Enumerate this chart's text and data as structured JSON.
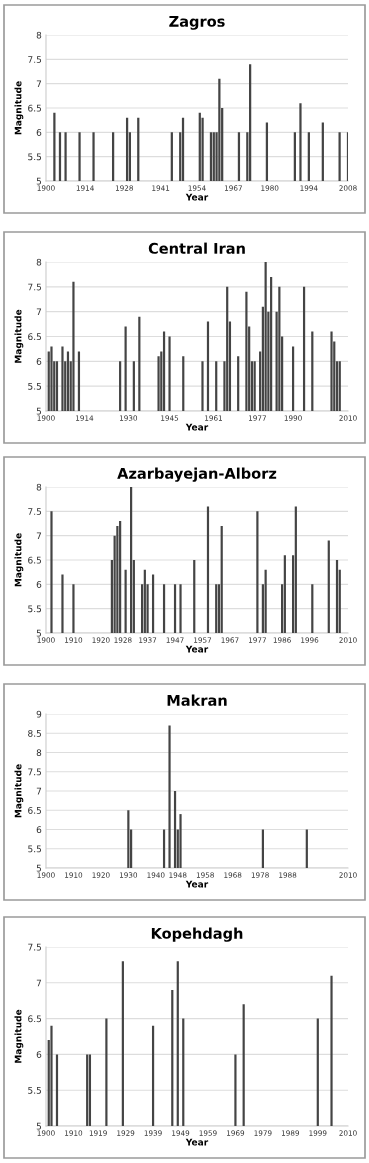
{
  "chart_data": [
    {
      "type": "bar",
      "title": "Zagros",
      "xlabel": "Year",
      "ylabel": "Magnitude",
      "color": "#444444",
      "grid": "y",
      "x": [
        1903,
        1905,
        1907,
        1912,
        1917,
        1924,
        1929,
        1930,
        1933,
        1945,
        1948,
        1949,
        1955,
        1956,
        1959,
        1960,
        1961,
        1962,
        1963,
        1969,
        1972,
        1973,
        1979,
        1989,
        1991,
        1994,
        1999,
        2005,
        2008
      ],
      "values": [
        6.4,
        6,
        6,
        6,
        6,
        6,
        6.3,
        6,
        6.3,
        6,
        6,
        6.3,
        6.4,
        6.3,
        6,
        6,
        6,
        7.1,
        6.5,
        6,
        6,
        7.4,
        6.2,
        6,
        6.6,
        6,
        6.2,
        6,
        6
      ],
      "xlim": [
        1900,
        2008
      ],
      "xticks": [
        1900,
        1914,
        1928,
        1941,
        1954,
        1967,
        1980,
        1994,
        2008
      ],
      "ylim": [
        5,
        8
      ],
      "yticks": [
        5,
        5.5,
        6,
        6.5,
        7,
        7.5,
        8
      ]
    },
    {
      "type": "bar",
      "title": "Central Iran",
      "xlabel": "Year",
      "ylabel": "Magnitude",
      "color": "#444444",
      "grid": "y",
      "x": [
        1901,
        1902,
        1903,
        1904,
        1906,
        1907,
        1908,
        1909,
        1910,
        1912,
        1927,
        1929,
        1932,
        1934,
        1941,
        1942,
        1943,
        1945,
        1950,
        1957,
        1959,
        1962,
        1965,
        1966,
        1967,
        1970,
        1973,
        1974,
        1975,
        1976,
        1978,
        1979,
        1980,
        1981,
        1982,
        1984,
        1985,
        1986,
        1990,
        1994,
        1997,
        2004,
        2005,
        2006,
        2007
      ],
      "values": [
        6.2,
        6.3,
        6,
        6,
        6.3,
        6,
        6.2,
        6,
        7.6,
        6.2,
        6,
        6.7,
        6,
        6.9,
        6.1,
        6.2,
        6.6,
        6.5,
        6.1,
        6,
        6.8,
        6,
        6,
        7.5,
        6.8,
        6.1,
        7.4,
        6.7,
        6,
        6,
        6.2,
        7.1,
        8,
        7,
        7.7,
        7,
        7.5,
        6.5,
        6.3,
        7.5,
        6.6,
        6.6,
        6.4,
        6,
        6
      ],
      "xlim": [
        1900,
        2010
      ],
      "xticks": [
        1900,
        1914,
        1930,
        1945,
        1961,
        1977,
        1990,
        2010
      ],
      "ylim": [
        5,
        8
      ],
      "yticks": [
        5,
        5.5,
        6,
        6.5,
        7,
        7.5,
        8
      ]
    },
    {
      "type": "bar",
      "title": "Azarbayejan-Alborz",
      "xlabel": "Year",
      "ylabel": "Magnitude",
      "color": "#444444",
      "grid": "y",
      "x": [
        1902,
        1906,
        1910,
        1924,
        1925,
        1926,
        1927,
        1929,
        1931,
        1932,
        1935,
        1936,
        1937,
        1939,
        1943,
        1947,
        1949,
        1954,
        1959,
        1962,
        1963,
        1964,
        1977,
        1979,
        1980,
        1986,
        1987,
        1990,
        1991,
        1997,
        2003,
        2006,
        2007
      ],
      "values": [
        7.5,
        6.2,
        6,
        6.5,
        7,
        7.2,
        7.3,
        6.3,
        8,
        6.5,
        6,
        6.3,
        6,
        6.2,
        6,
        6,
        6,
        6.5,
        7.6,
        6,
        6,
        7.2,
        7.5,
        6,
        6.3,
        6,
        6.6,
        6.6,
        7.6,
        6,
        6.9,
        6.5,
        6.3
      ],
      "xlim": [
        1900,
        2010
      ],
      "xticks": [
        1900,
        1910,
        1920,
        1928,
        1937,
        1947,
        1957,
        1967,
        1977,
        1986,
        1996,
        2010
      ],
      "ylim": [
        5,
        8
      ],
      "yticks": [
        5,
        5.5,
        6,
        6.5,
        7,
        7.5,
        8
      ]
    },
    {
      "type": "bar",
      "title": "Makran",
      "xlabel": "Year",
      "ylabel": "Magnitude",
      "color": "#444444",
      "grid": "y",
      "x": [
        1930,
        1931,
        1943,
        1945,
        1947,
        1948,
        1949,
        1979,
        1995
      ],
      "values": [
        6.5,
        6,
        6,
        8.7,
        7,
        6,
        6.4,
        6,
        6
      ],
      "xlim": [
        1900,
        2010
      ],
      "xticks": [
        1900,
        1910,
        1920,
        1930,
        1940,
        1948,
        1958,
        1968,
        1978,
        1988,
        2010
      ],
      "ylim": [
        5,
        9
      ],
      "yticks": [
        5,
        5.5,
        6,
        6.5,
        7,
        7.5,
        8,
        8.5,
        9
      ]
    },
    {
      "type": "bar",
      "title": "Kopehdagh",
      "xlabel": "Year",
      "ylabel": "Magnitude",
      "color": "#444444",
      "grid": "y",
      "x": [
        1901,
        1902,
        1904,
        1915,
        1916,
        1922,
        1928,
        1939,
        1946,
        1948,
        1950,
        1969,
        1972,
        1999,
        2004
      ],
      "values": [
        6.2,
        6.4,
        6,
        6,
        6,
        6.5,
        7.3,
        6.4,
        6.9,
        7.3,
        6.5,
        6,
        6.7,
        6.5,
        7.1
      ],
      "xlim": [
        1900,
        2010
      ],
      "xticks": [
        1900,
        1910,
        1919,
        1929,
        1939,
        1949,
        1959,
        1969,
        1979,
        1989,
        1999,
        2010
      ],
      "ylim": [
        5,
        7.5
      ],
      "yticks": [
        5,
        5.5,
        6,
        6.5,
        7,
        7.5
      ]
    }
  ]
}
